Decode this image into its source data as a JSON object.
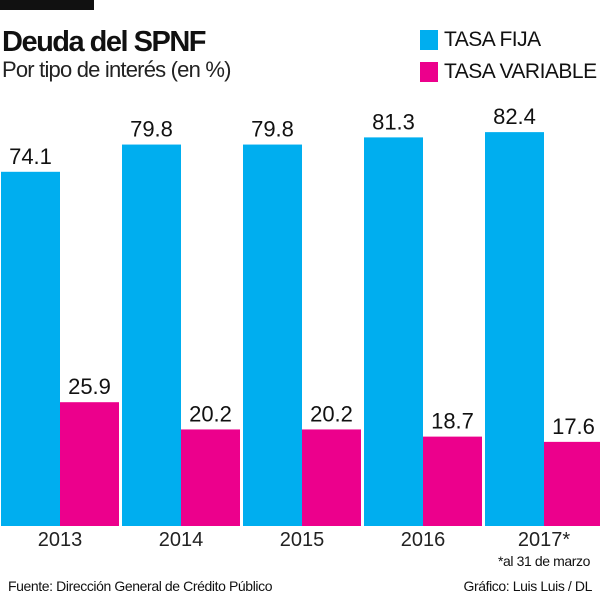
{
  "header": {
    "title": "Deuda del SPNF",
    "subtitle": "Por tipo de interés (en %)"
  },
  "chart_data": {
    "type": "bar",
    "title": "Deuda del SPNF",
    "subtitle": "Por tipo de interés (en %)",
    "categories": [
      "2013",
      "2014",
      "2015",
      "2016",
      "2017*"
    ],
    "series": [
      {
        "name": "TASA FIJA",
        "color": "#00AEEF",
        "values": [
          74.1,
          79.8,
          79.8,
          81.3,
          82.4
        ]
      },
      {
        "name": "TASA VARIABLE",
        "color": "#EC008C",
        "values": [
          25.9,
          20.2,
          20.2,
          18.7,
          17.6
        ]
      }
    ],
    "ylim": [
      0,
      100
    ],
    "grid": false,
    "legend": "top-right",
    "data_labels": true
  },
  "footer": {
    "note": "*al 31 de marzo",
    "source": "Fuente: Dirección General de Crédito Público",
    "credit": "Gráfico: Luis Luis / DL"
  }
}
